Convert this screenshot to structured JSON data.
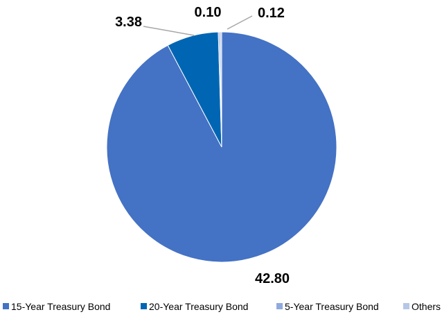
{
  "chart_data": {
    "type": "pie",
    "title": "",
    "categories": [
      "15-Year Treasury Bond",
      "20-Year Treasury Bond",
      "5-Year Treasury Bond",
      "Others"
    ],
    "values": [
      42.8,
      3.38,
      0.1,
      0.12
    ],
    "data_labels": [
      "42.80",
      "3.38",
      "0.10",
      "0.12"
    ],
    "colors": [
      "#4472C4",
      "#0066B3",
      "#8FAADC",
      "#B4C7E7"
    ],
    "start_angle_deg": 0,
    "direction": "clockwise",
    "legend": {
      "position": "bottom",
      "entries": [
        "15-Year Treasury Bond",
        "20-Year Treasury Bond",
        "5-Year Treasury Bond",
        "Others"
      ]
    }
  }
}
